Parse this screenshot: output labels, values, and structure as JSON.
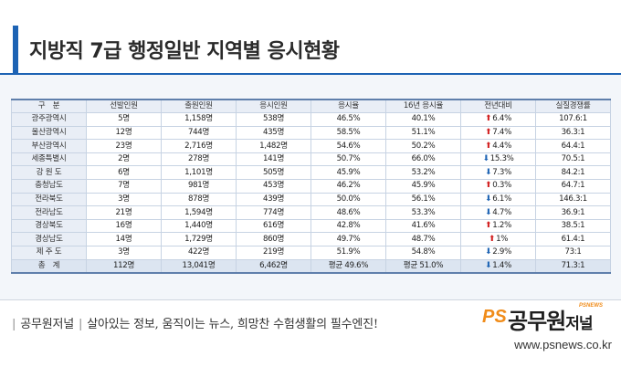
{
  "header": {
    "title": "지방직 7급 행정일반 지역별 응시현황"
  },
  "table": {
    "columns": [
      "구　분",
      "선발인원",
      "출원인원",
      "응시인원",
      "응시율",
      "16년 응시율",
      "전년대비",
      "실질경쟁률"
    ],
    "rows": [
      {
        "region": "광주광역시",
        "selected": "5명",
        "applied": "1,158명",
        "tested": "538명",
        "rate": "46.5%",
        "rate16": "40.1%",
        "change": "6.4%",
        "dir": "up",
        "competition": "107.6:1"
      },
      {
        "region": "울산광역시",
        "selected": "12명",
        "applied": "744명",
        "tested": "435명",
        "rate": "58.5%",
        "rate16": "51.1%",
        "change": "7.4%",
        "dir": "up",
        "competition": "36.3:1"
      },
      {
        "region": "부산광역시",
        "selected": "23명",
        "applied": "2,716명",
        "tested": "1,482명",
        "rate": "54.6%",
        "rate16": "50.2%",
        "change": "4.4%",
        "dir": "up",
        "competition": "64.4:1"
      },
      {
        "region": "세종특별시",
        "selected": "2명",
        "applied": "278명",
        "tested": "141명",
        "rate": "50.7%",
        "rate16": "66.0%",
        "change": "15.3%",
        "dir": "down",
        "competition": "70.5:1"
      },
      {
        "region": "강 원 도",
        "selected": "6명",
        "applied": "1,101명",
        "tested": "505명",
        "rate": "45.9%",
        "rate16": "53.2%",
        "change": "7.3%",
        "dir": "down",
        "competition": "84.2:1"
      },
      {
        "region": "충청남도",
        "selected": "7명",
        "applied": "981명",
        "tested": "453명",
        "rate": "46.2%",
        "rate16": "45.9%",
        "change": "0.3%",
        "dir": "up",
        "competition": "64.7:1"
      },
      {
        "region": "전라북도",
        "selected": "3명",
        "applied": "878명",
        "tested": "439명",
        "rate": "50.0%",
        "rate16": "56.1%",
        "change": "6.1%",
        "dir": "down",
        "competition": "146.3:1"
      },
      {
        "region": "전라남도",
        "selected": "21명",
        "applied": "1,594명",
        "tested": "774명",
        "rate": "48.6%",
        "rate16": "53.3%",
        "change": "4.7%",
        "dir": "down",
        "competition": "36.9:1"
      },
      {
        "region": "경상북도",
        "selected": "16명",
        "applied": "1,440명",
        "tested": "616명",
        "rate": "42.8%",
        "rate16": "41.6%",
        "change": "1.2%",
        "dir": "up",
        "competition": "38.5:1"
      },
      {
        "region": "경상남도",
        "selected": "14명",
        "applied": "1,729명",
        "tested": "860명",
        "rate": "49.7%",
        "rate16": "48.7%",
        "change": "1%",
        "dir": "up",
        "competition": "61.4:1"
      },
      {
        "region": "제 주 도",
        "selected": "3명",
        "applied": "422명",
        "tested": "219명",
        "rate": "51.9%",
        "rate16": "54.8%",
        "change": "2.9%",
        "dir": "down",
        "competition": "73:1"
      }
    ],
    "total": {
      "region": "총　계",
      "selected": "112명",
      "applied": "13,041명",
      "tested": "6,462명",
      "rate": "평균 49.6%",
      "rate16": "평균 51.0%",
      "change": "1.4%",
      "dir": "down",
      "competition": "71.3:1"
    }
  },
  "footer": {
    "brand": "공무원저널",
    "slogan": "살아있는 정보, 움직이는 뉴스, 희망찬 수험생활의 필수엔진!",
    "logo_ps": "PS",
    "logo_name": "공무원",
    "logo_tail": "저널",
    "logo_tag": "PSNEWS",
    "url": "www.psnews.co.kr",
    "colors": {
      "brand_blue": "#1d63b4",
      "logo_orange": "#f08c1a",
      "up_red": "#d21f1f",
      "down_blue": "#1d63b4"
    }
  }
}
